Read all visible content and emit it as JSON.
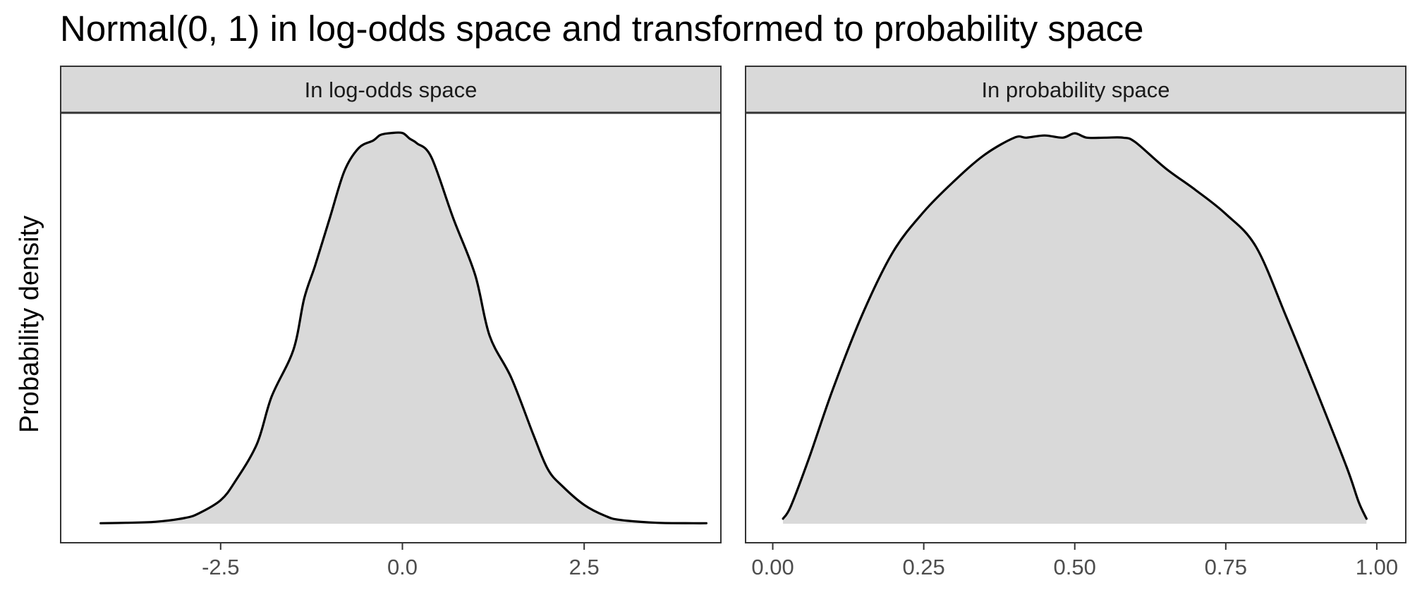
{
  "chart_data": {
    "type": "area",
    "title": "Normal(0, 1) in log-odds space and transformed to probability space",
    "ylabel": "Probability density",
    "xlabel": "",
    "grid": false,
    "colors": {
      "fill": "#d9d9d9",
      "line": "#000000",
      "strip_fill": "#d9d9d9",
      "border": "#333333"
    },
    "panels": [
      {
        "strip_label": "In log-odds space",
        "xlim": [
          -4.7,
          4.38
        ],
        "ylim": [
          0,
          0.418
        ],
        "x_ticks": [
          -2.5,
          0,
          2.5
        ],
        "x_tick_labels": [
          "-2.5",
          "0.0",
          "2.5"
        ],
        "x": [
          -4.15,
          -3.8,
          -3.4,
          -3.0,
          -2.8,
          -2.5,
          -2.3,
          -2.0,
          -1.8,
          -1.5,
          -1.35,
          -1.2,
          -1.0,
          -0.8,
          -0.6,
          -0.4,
          -0.3,
          -0.15,
          0.0,
          0.1,
          0.2,
          0.4,
          0.7,
          1.0,
          1.2,
          1.5,
          1.8,
          2.0,
          2.2,
          2.5,
          2.8,
          3.0,
          3.5,
          4.0,
          4.18
        ],
        "y": [
          0.0005,
          0.001,
          0.002,
          0.006,
          0.011,
          0.025,
          0.045,
          0.085,
          0.135,
          0.185,
          0.24,
          0.275,
          0.325,
          0.375,
          0.4,
          0.408,
          0.414,
          0.416,
          0.416,
          0.41,
          0.405,
          0.39,
          0.325,
          0.265,
          0.2,
          0.155,
          0.095,
          0.058,
          0.04,
          0.02,
          0.008,
          0.004,
          0.001,
          0.0005,
          0.0005
        ]
      },
      {
        "strip_label": "In probability space",
        "xlim": [
          -0.045,
          1.048
        ],
        "ylim": [
          0,
          1.8
        ],
        "x_ticks": [
          0,
          0.25,
          0.5,
          0.75,
          1.0
        ],
        "x_tick_labels": [
          "0.00",
          "0.25",
          "0.50",
          "0.75",
          "1.00"
        ],
        "x": [
          0.017,
          0.03,
          0.06,
          0.1,
          0.15,
          0.2,
          0.25,
          0.3,
          0.35,
          0.4,
          0.42,
          0.45,
          0.48,
          0.5,
          0.52,
          0.55,
          0.58,
          0.6,
          0.65,
          0.7,
          0.75,
          0.8,
          0.85,
          0.9,
          0.95,
          0.97,
          0.983
        ],
        "y": [
          0.023,
          0.08,
          0.3,
          0.62,
          0.97,
          1.25,
          1.43,
          1.57,
          1.69,
          1.77,
          1.77,
          1.78,
          1.77,
          1.79,
          1.77,
          1.77,
          1.77,
          1.75,
          1.63,
          1.53,
          1.42,
          1.27,
          0.95,
          0.61,
          0.26,
          0.1,
          0.023
        ]
      }
    ]
  }
}
